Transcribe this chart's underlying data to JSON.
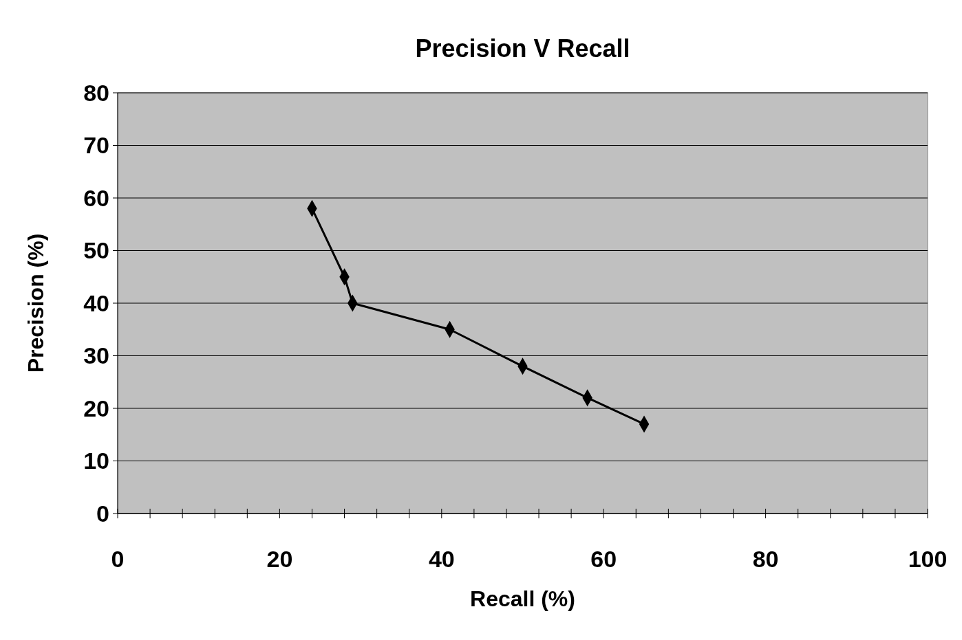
{
  "chart_data": {
    "type": "line",
    "title": "Precision V Recall",
    "xlabel": "Recall (%)",
    "ylabel": "Precision (%)",
    "x": [
      24,
      28,
      29,
      41,
      50,
      58,
      65
    ],
    "series": [
      {
        "color": "#000000",
        "values": [
          58,
          45,
          40,
          35,
          28,
          22,
          17
        ]
      }
    ],
    "xlim": [
      0,
      100
    ],
    "xticks": [
      0,
      {
        "value": 4,
        "label": null
      },
      {
        "value": 8,
        "label": null
      },
      {
        "value": 12,
        "label": null
      },
      {
        "value": 16,
        "label": null
      },
      20,
      {
        "value": 24,
        "label": null
      },
      {
        "value": 28,
        "label": null
      },
      {
        "value": 32,
        "label": null
      },
      {
        "value": 36,
        "label": null
      },
      40,
      {
        "value": 44,
        "label": null
      },
      {
        "value": 48,
        "label": null
      },
      {
        "value": 52,
        "label": null
      },
      {
        "value": 56,
        "label": null
      },
      60,
      {
        "value": 64,
        "label": null
      },
      {
        "value": 68,
        "label": null
      },
      {
        "value": 72,
        "label": null
      },
      {
        "value": 76,
        "label": null
      },
      80,
      {
        "value": 84,
        "label": null
      },
      {
        "value": 88,
        "label": null
      },
      {
        "value": 92,
        "label": null
      },
      {
        "value": 96,
        "label": null
      },
      100
    ],
    "ylim": [
      0,
      80
    ],
    "yticks": [
      0,
      10,
      20,
      30,
      40,
      50,
      60,
      70,
      80
    ],
    "grid": "y",
    "marker": "diamond",
    "line_style": "solid"
  }
}
